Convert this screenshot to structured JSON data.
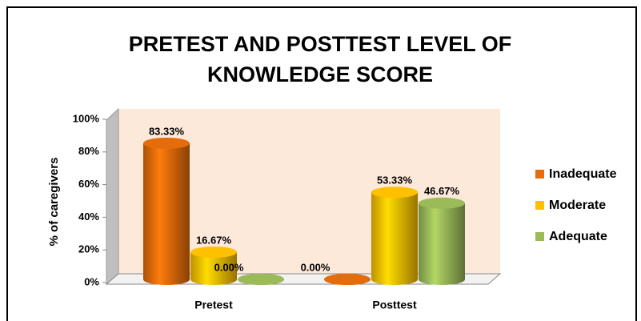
{
  "chart_data": {
    "type": "bar3d",
    "title": "PRETEST AND POSTTEST LEVEL OF KNOWLEDGE SCORE",
    "y_label": "% of caregivers",
    "categories": [
      "Pretest",
      "Posttest"
    ],
    "series": [
      {
        "name": "Inadequate",
        "color": "#e46c0a",
        "values": [
          83.33,
          0
        ],
        "value_labels": [
          "83.33%",
          "0.00%"
        ]
      },
      {
        "name": "Moderate",
        "color": "#ffc000",
        "values": [
          16.67,
          53.33
        ],
        "value_labels": [
          "16.67%",
          "53.33%"
        ]
      },
      {
        "name": "Adequate",
        "color": "#9bbb59",
        "values": [
          0,
          46.67
        ],
        "value_labels": [
          "0.00%",
          "46.67%"
        ]
      }
    ],
    "ylim": [
      0,
      100
    ],
    "yticks": [
      {
        "value": 0,
        "label": "0%"
      },
      {
        "value": 20,
        "label": "20%"
      },
      {
        "value": 40,
        "label": "40%"
      },
      {
        "value": 60,
        "label": "60%"
      },
      {
        "value": 80,
        "label": "80%"
      },
      {
        "value": 100,
        "label": "100%"
      }
    ],
    "legend": "right"
  }
}
